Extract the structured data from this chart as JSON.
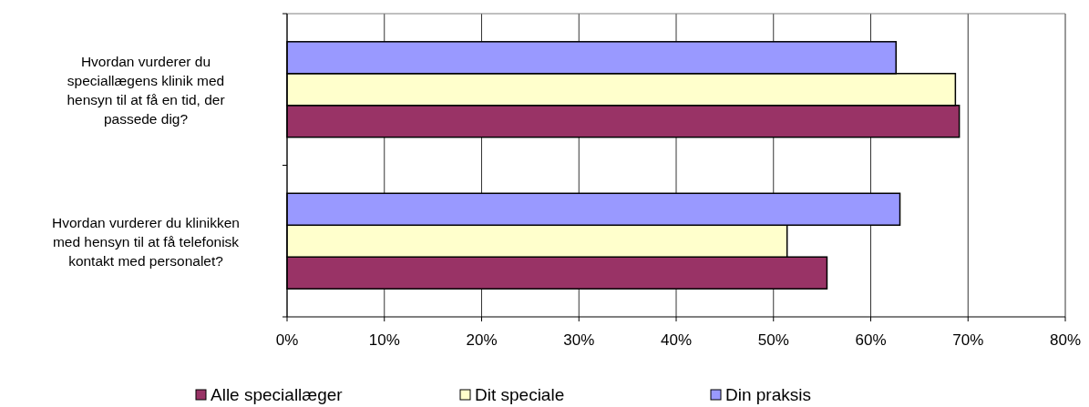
{
  "chart_data": {
    "type": "bar",
    "orientation": "horizontal",
    "categories": [
      "Hvordan vurderer du\nspeciallægens klinik med\nhensyn til at få en tid, der\npassede dig?",
      "Hvordan vurderer du klinikken\nmed hensyn til at få telefonisk\nkontakt med personalet?"
    ],
    "series": [
      {
        "name": "Alle speciallæger",
        "color": "#993366",
        "values": [
          69.1,
          55.5
        ]
      },
      {
        "name": "Dit speciale",
        "color": "#ffffcc",
        "values": [
          68.7,
          51.4
        ]
      },
      {
        "name": "Din praksis",
        "color": "#9999ff",
        "values": [
          62.6,
          63.0
        ]
      }
    ],
    "xlim": [
      0,
      80
    ],
    "xticks": [
      {
        "value": 0,
        "label": "0%"
      },
      {
        "value": 10,
        "label": "10%"
      },
      {
        "value": 20,
        "label": "20%"
      },
      {
        "value": 30,
        "label": "30%"
      },
      {
        "value": 40,
        "label": "40%"
      },
      {
        "value": 50,
        "label": "50%"
      },
      {
        "value": 60,
        "label": "60%"
      },
      {
        "value": 70,
        "label": "70%"
      },
      {
        "value": 80,
        "label": "80%"
      }
    ],
    "grid": "x",
    "legend": "bottom"
  }
}
